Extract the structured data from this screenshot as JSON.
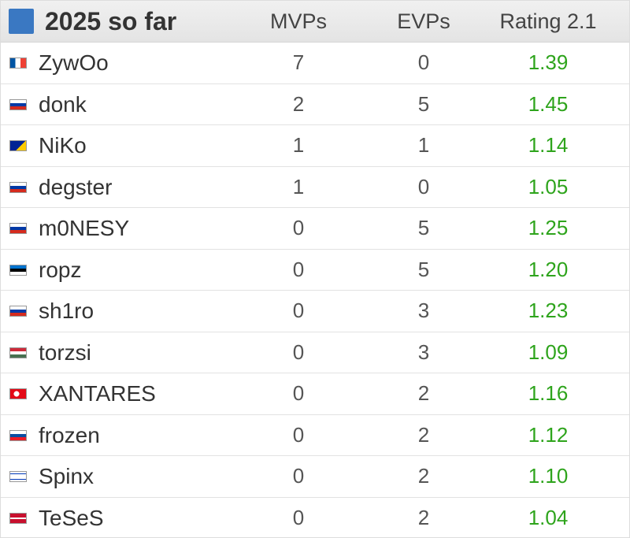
{
  "header": {
    "title": "2025 so far",
    "columns": [
      "MVPs",
      "EVPs",
      "Rating 2.1"
    ]
  },
  "table": {
    "rows": [
      [
        "ZywOo",
        "7",
        "0",
        "1.39"
      ],
      [
        "donk",
        "2",
        "5",
        "1.45"
      ],
      [
        "NiKo",
        "1",
        "1",
        "1.14"
      ],
      [
        "degster",
        "1",
        "0",
        "1.05"
      ],
      [
        "m0NESY",
        "0",
        "5",
        "1.25"
      ],
      [
        "ropz",
        "0",
        "5",
        "1.20"
      ],
      [
        "sh1ro",
        "0",
        "3",
        "1.23"
      ],
      [
        "torzsi",
        "0",
        "3",
        "1.09"
      ],
      [
        "XANTARES",
        "0",
        "2",
        "1.16"
      ],
      [
        "frozen",
        "0",
        "2",
        "1.12"
      ],
      [
        "Spinx",
        "0",
        "2",
        "1.10"
      ],
      [
        "TeSeS",
        "0",
        "2",
        "1.04"
      ]
    ]
  }
}
